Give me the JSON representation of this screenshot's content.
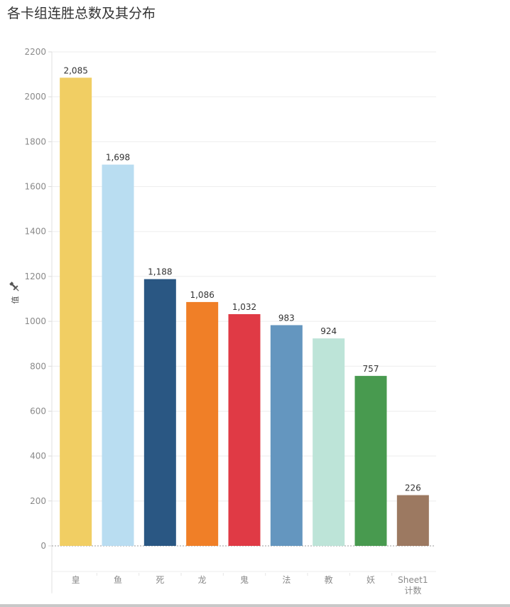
{
  "title": "各卡组连胜总数及其分布",
  "chart_data": {
    "type": "bar",
    "title": "各卡组连胜总数及其分布",
    "ylabel": "值",
    "xlabel": "",
    "ylim": [
      -100,
      2200
    ],
    "yticks": [
      0,
      200,
      400,
      600,
      800,
      1000,
      1200,
      1400,
      1600,
      1800,
      2000,
      2200
    ],
    "ytick_labels": [
      "0",
      "200",
      "400",
      "600",
      "800",
      "1000",
      "1200",
      "1400",
      "1600",
      "1800",
      "2000",
      "2200"
    ],
    "categories": [
      "皇",
      "鱼",
      "死",
      "龙",
      "鬼",
      "法",
      "教",
      "妖",
      "Sheet1 计数"
    ],
    "category_lines": [
      [
        "皇"
      ],
      [
        "鱼"
      ],
      [
        "死"
      ],
      [
        "龙"
      ],
      [
        "鬼"
      ],
      [
        "法"
      ],
      [
        "教"
      ],
      [
        "妖"
      ],
      [
        "Sheet1",
        "计数"
      ]
    ],
    "values": [
      2085,
      1698,
      1188,
      1086,
      1032,
      983,
      924,
      757,
      226
    ],
    "value_labels": [
      "2,085",
      "1,698",
      "1,188",
      "1,086",
      "1,032",
      "983",
      "924",
      "757",
      "226"
    ],
    "colors": [
      "#F1CE63",
      "#B9DDF1",
      "#2A5783",
      "#F07F27",
      "#E03A45",
      "#6496BF",
      "#BDE4D8",
      "#489A4F",
      "#9C7961"
    ],
    "grid": true,
    "legend": "none",
    "axis_icon": "pin-icon"
  }
}
